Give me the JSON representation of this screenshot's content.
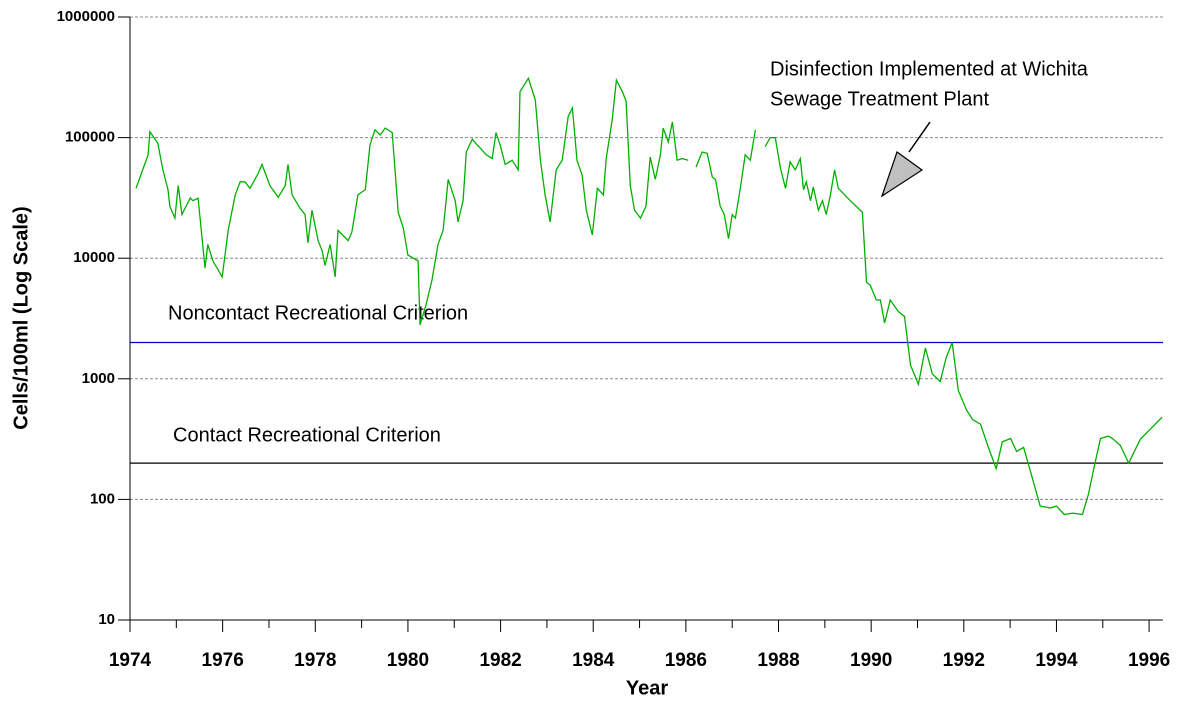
{
  "chart_data": {
    "type": "line",
    "xlabel": "Year",
    "ylabel": "Cells/100ml (Log Scale)",
    "log_y": true,
    "grid": true,
    "xlim": [
      1974,
      1996.3
    ],
    "ylim": [
      10,
      1000000
    ],
    "xticks": [
      1974,
      1976,
      1978,
      1980,
      1982,
      1984,
      1986,
      1988,
      1990,
      1992,
      1994,
      1996
    ],
    "xticks_minor": [
      1975,
      1977,
      1979,
      1981,
      1983,
      1985,
      1987,
      1989,
      1991,
      1993,
      1995
    ],
    "yticks": [
      10,
      100,
      1000,
      10000,
      100000,
      1000000
    ],
    "series": [
      {
        "color": "#00b000",
        "x": [
          1974.13,
          1974.39,
          1974.43,
          1974.6,
          1974.71,
          1974.82,
          1974.86,
          1974.97,
          1975.04,
          1975.12,
          1975.3,
          1975.36,
          1975.47,
          1975.62,
          1975.68,
          1975.79,
          1975.99,
          1976.12,
          1976.27,
          1976.38,
          1976.48,
          1976.59,
          1976.76,
          1976.85,
          1977.02,
          1977.2,
          1977.35,
          1977.41,
          1977.5,
          1977.67,
          1977.78,
          1977.84,
          1977.93,
          1978.06,
          1978.15,
          1978.21,
          1978.32,
          1978.43,
          1978.49,
          1978.71,
          1978.79,
          1978.92,
          1979.08,
          1979.18,
          1979.29,
          1979.4,
          1979.51,
          1979.66,
          1979.79,
          1979.9,
          1980.0,
          1980.22,
          1980.26,
          1980.39,
          1980.52,
          1980.65,
          1980.76,
          1980.87,
          1981.02,
          1981.08,
          1981.19,
          1981.26,
          1981.39,
          1981.47,
          1981.56,
          1981.69,
          1981.82,
          1981.9,
          1981.99,
          1982.1,
          1982.25,
          1982.38,
          1982.42,
          1982.6,
          1982.75,
          1982.86,
          1982.96,
          1983.07,
          1983.2,
          1983.33,
          1983.46,
          1983.55,
          1983.65,
          1983.76,
          1983.85,
          1983.98,
          1984.09,
          1984.22,
          1984.28,
          1984.41,
          1984.5,
          1984.63,
          1984.71,
          1984.8,
          1984.89,
          1985.02,
          1985.14,
          1985.23,
          1985.34,
          1985.45,
          1985.51,
          1985.62,
          1985.71,
          1985.81,
          1985.92,
          1986.05,
          1986.12,
          1986.22,
          1986.35,
          1986.46,
          1986.57,
          1986.64,
          1986.74,
          1986.83,
          1986.92,
          1987.0,
          1987.07,
          1987.17,
          1987.28,
          1987.39,
          1987.5,
          1987.6,
          1987.71,
          1987.82,
          1987.93,
          1988.04,
          1988.15,
          1988.25,
          1988.36,
          1988.47,
          1988.54,
          1988.6,
          1988.69,
          1988.75,
          1988.86,
          1988.95,
          1989.03,
          1989.12,
          1989.21,
          1989.29,
          1989.55,
          1989.81,
          1989.9,
          1989.98,
          1990.11,
          1990.2,
          1990.29,
          1990.41,
          1990.59,
          1990.72,
          1990.85,
          1991.02,
          1991.17,
          1991.32,
          1991.49,
          1991.62,
          1991.75,
          1991.88,
          1992.06,
          1992.19,
          1992.36,
          1992.53,
          1992.7,
          1992.83,
          1993.01,
          1993.14,
          1993.29,
          1993.44,
          1993.65,
          1993.87,
          1994.0,
          1994.17,
          1994.35,
          1994.56,
          1994.69,
          1994.82,
          1994.95,
          1995.12,
          1995.21,
          1995.38,
          1995.56,
          1995.81,
          1996.28
        ],
        "values": [
          38000,
          72000,
          112000,
          90000,
          54000,
          37000,
          27000,
          21500,
          40000,
          23000,
          31500,
          30000,
          31500,
          8300,
          13000,
          9500,
          7000,
          17000,
          33500,
          43000,
          43000,
          38000,
          50000,
          60000,
          40000,
          32000,
          40000,
          60000,
          33500,
          26000,
          23000,
          13400,
          25000,
          14000,
          11500,
          8700,
          13000,
          7000,
          17000,
          14000,
          16500,
          33500,
          37000,
          87000,
          116000,
          105000,
          120000,
          110000,
          24000,
          17800,
          10600,
          9500,
          2800,
          4100,
          6600,
          13000,
          17000,
          45000,
          30000,
          20000,
          30000,
          76000,
          97000,
          89000,
          82000,
          72000,
          67000,
          110000,
          87000,
          60000,
          65000,
          54000,
          240000,
          310000,
          205000,
          65000,
          33500,
          20000,
          54000,
          65000,
          150000,
          176000,
          65000,
          49000,
          25000,
          15600,
          38000,
          33500,
          67000,
          140000,
          300000,
          240000,
          200000,
          40000,
          25000,
          21500,
          27000,
          69000,
          45000,
          72000,
          120000,
          92000,
          135000,
          65000,
          67000,
          65000,
          null,
          57000,
          76000,
          74000,
          47000,
          45000,
          27000,
          23000,
          14500,
          23000,
          21500,
          37000,
          72000,
          65000,
          116000,
          null,
          84000,
          100000,
          100000,
          56000,
          38000,
          63000,
          54000,
          67000,
          37000,
          43000,
          30000,
          39000,
          25000,
          30000,
          23000,
          33500,
          54000,
          38000,
          30000,
          24000,
          6300,
          6000,
          4500,
          4500,
          2900,
          4500,
          3600,
          3300,
          1300,
          900,
          1800,
          1100,
          950,
          1500,
          2000,
          800,
          550,
          460,
          420,
          270,
          180,
          300,
          320,
          250,
          270,
          170,
          88,
          85,
          88,
          75,
          77,
          75,
          110,
          190,
          320,
          335,
          320,
          280,
          200,
          315,
          480
        ]
      }
    ],
    "reference_lines": [
      {
        "label": "Noncontact Recreational Criterion",
        "value": 2000,
        "color": "#0000cc"
      },
      {
        "label": "Contact Recreational Criterion",
        "value": 200,
        "color": "#000000"
      }
    ],
    "annotation": {
      "lines": [
        "Disinfection Implemented at Wichita",
        "Sewage Treatment Plant"
      ]
    }
  }
}
